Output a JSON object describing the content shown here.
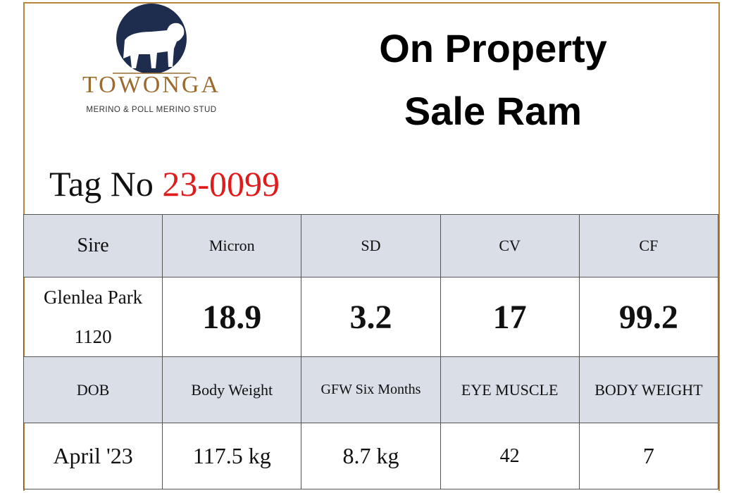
{
  "header": {
    "brand": "TOWONGA",
    "tagline": "MERINO & POLL MERINO STUD",
    "title_lines": [
      "On Property",
      "Sale Ram"
    ]
  },
  "tag": {
    "label": "Tag No",
    "number": "23-0099"
  },
  "table": {
    "rows": [
      [
        "Sire",
        "Micron",
        "SD",
        "CV",
        "CF"
      ],
      [
        "Glenlea Park 1120",
        "18.9",
        "3.2",
        "17",
        "99.2"
      ],
      [
        "DOB",
        "Body Weight",
        "GFW Six Months",
        "EYE MUSCLE",
        "BODY WEIGHT"
      ],
      [
        "April '23",
        "117.5 kg",
        "8.7 kg",
        "42",
        "7"
      ]
    ]
  }
}
